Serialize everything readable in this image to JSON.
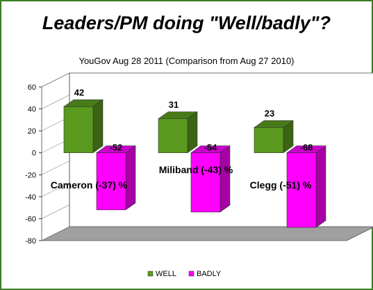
{
  "chart_data": {
    "type": "bar",
    "title": "Leaders/PM doing \"Well/badly\"?",
    "subtitle": "YouGov Aug 28 2011 (Comparison from Aug 27 2010)",
    "categories": [
      "Cameron",
      "Miliband",
      "Clegg"
    ],
    "series": [
      {
        "name": "WELL",
        "values": [
          42,
          31,
          23
        ],
        "color": "#5a9a1e"
      },
      {
        "name": "BADLY",
        "values": [
          -52,
          -54,
          -68
        ],
        "color": "#ff00ff"
      }
    ],
    "annotations": [
      "Cameron (-37)  %",
      "Miliband (-43)  %",
      "Clegg (-51) %"
    ],
    "ylim": [
      -80,
      60
    ],
    "yticks": [
      60,
      40,
      20,
      0,
      -20,
      -40,
      -60,
      -80
    ],
    "grid": false,
    "legend": "bottom",
    "style": "3d"
  }
}
